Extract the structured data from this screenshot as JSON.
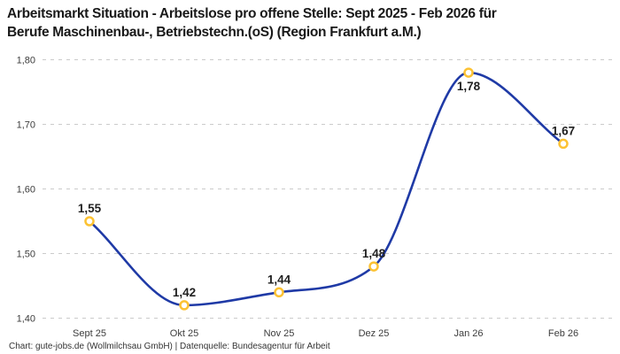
{
  "header": {
    "title_lines": [
      "Arbeitsmarkt Situation - Arbeitslose pro offene Stelle: Sept 2025 - Feb 2026 für",
      "Berufe Maschinenbau-, Betriebstechn.(oS) (Region Frankfurt a.M.)"
    ]
  },
  "chart_data": {
    "type": "line",
    "title": "Arbeitsmarkt Situation - Arbeitslose pro offene Stelle: Sept 2025 - Feb 2026 für Berufe Maschinenbau-, Betriebstechn.(oS) (Region Frankfurt a.M.)",
    "categories": [
      "Sept 25",
      "Okt 25",
      "Nov 25",
      "Dez 25",
      "Jan 26",
      "Feb 26"
    ],
    "values": [
      1.55,
      1.42,
      1.44,
      1.48,
      1.78,
      1.67
    ],
    "point_labels": [
      "1,55",
      "1,42",
      "1,44",
      "1,48",
      "1,78",
      "1,67"
    ],
    "point_label_positions": [
      "above",
      "above",
      "above",
      "above",
      "below",
      "above"
    ],
    "yticks": [
      {
        "value": 1.4,
        "label": "1,40"
      },
      {
        "value": 1.5,
        "label": "1,50"
      },
      {
        "value": 1.6,
        "label": "1,60"
      },
      {
        "value": 1.7,
        "label": "1,70"
      },
      {
        "value": 1.8,
        "label": "1,80"
      }
    ],
    "ylim": [
      1.4,
      1.8
    ],
    "xlabel": "",
    "ylabel": "",
    "grid": "horizontal-dashed",
    "legend": "none",
    "curve": "smooth-monotone",
    "colors": {
      "line": "#1f3aa6",
      "marker_ring": "#fcc233",
      "marker_fill": "#ffffff",
      "gridline": "#cbcbcb",
      "tick_text": "#3c3c3c",
      "point_label_text": "#1f1f1f",
      "title_text": "#191919"
    }
  },
  "footer": {
    "credit": "Chart: gute-jobs.de (Wollmilchsau GmbH) | Datenquelle: Bundesagentur für Arbeit"
  }
}
